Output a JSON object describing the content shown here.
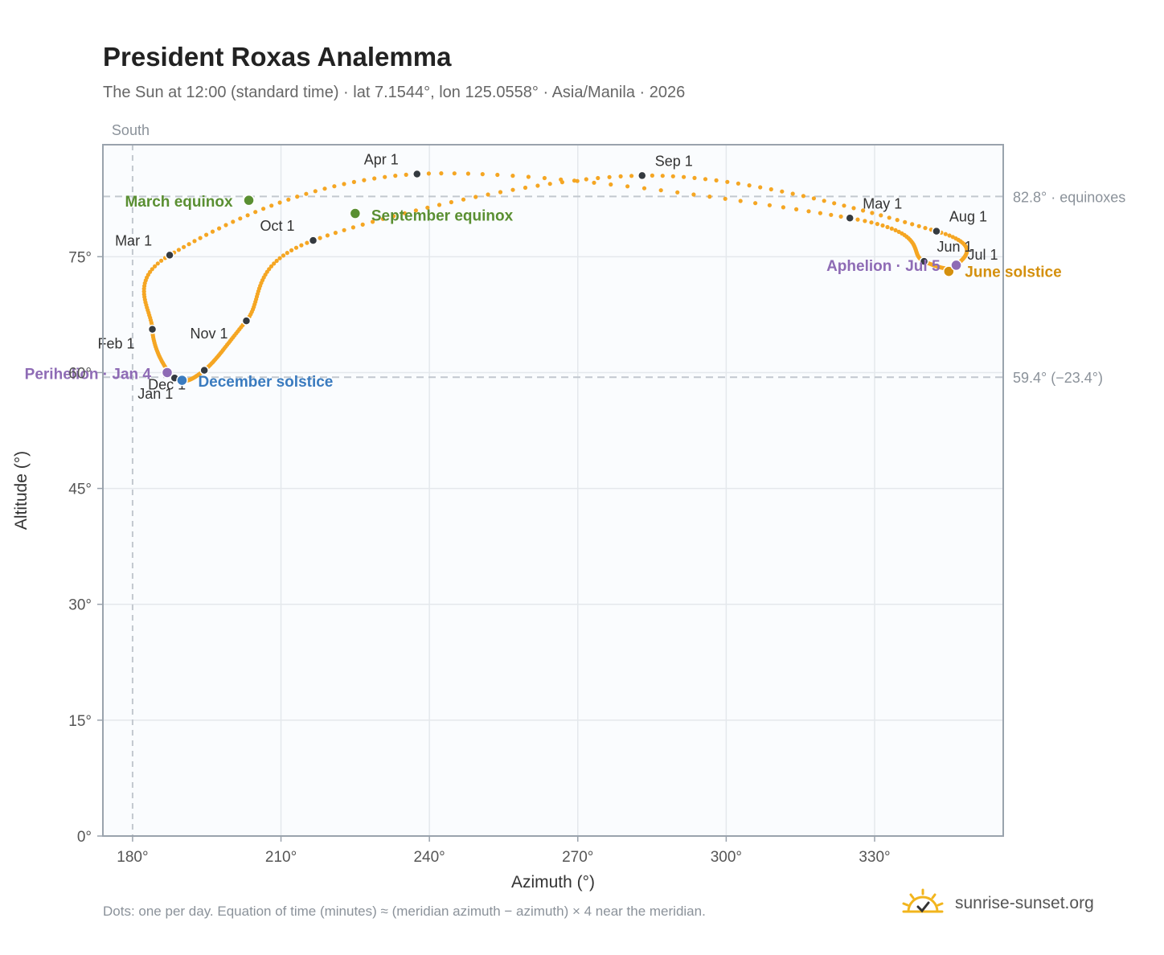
{
  "title": "President Roxas Analemma",
  "subtitle": "The Sun at 12:00 (standard time) · lat 7.1544°, lon 125.0558° · Asia/Manila · 2026",
  "footnote": "Dots: one per day. Equation of time (minutes) ≈ (meridian azimuth − azimuth) × 4 near the meridian.",
  "brand": {
    "name": "sunrise-sunset.org",
    "logo_icon": "sun-check-logo-icon"
  },
  "colors": {
    "path": "#f5a623",
    "month_marker": "#343a40",
    "equinox": "#5a8f32",
    "solstice_june": "#d4900e",
    "solstice_december": "#3a7bbf",
    "apsis": "#8e6bb5",
    "plot_bg": "#fafcfe",
    "grid": "#e4e8ec",
    "axis": "#9aa3ad",
    "reference_line": "#c2c8cf"
  },
  "chart_data": {
    "type": "scatter",
    "xlabel": "Azimuth (°)",
    "ylabel": "Altitude (°)",
    "xlim": [
      174,
      356
    ],
    "ylim": [
      0,
      89.5
    ],
    "x_ticks": [
      180,
      210,
      240,
      270,
      300,
      330
    ],
    "x_tick_labels": [
      "180°",
      "210°",
      "240°",
      "270°",
      "300°",
      "330°"
    ],
    "y_ticks": [
      0,
      15,
      30,
      45,
      60,
      75
    ],
    "y_tick_labels": [
      "0°",
      "15°",
      "30°",
      "45°",
      "60°",
      "75°"
    ],
    "grid": true,
    "meridian": {
      "x": 180,
      "label": "South"
    },
    "reference_lines": [
      {
        "y": 82.8,
        "label": "82.8° · equinoxes"
      },
      {
        "y": 59.4,
        "label": "59.4° (−23.4°)"
      }
    ],
    "month_markers": [
      {
        "label": "Jan 1",
        "x": 188.5,
        "y": 59.3
      },
      {
        "label": "Feb 1",
        "x": 184.0,
        "y": 65.6
      },
      {
        "label": "Mar 1",
        "x": 187.5,
        "y": 75.2
      },
      {
        "label": "Apr 1",
        "x": 237.5,
        "y": 85.7
      },
      {
        "label": "May 1",
        "x": 325.0,
        "y": 80.0
      },
      {
        "label": "Jun 1",
        "x": 340.0,
        "y": 74.4
      },
      {
        "label": "Jul 1",
        "x": 346.5,
        "y": 73.8
      },
      {
        "label": "Aug 1",
        "x": 342.5,
        "y": 78.3
      },
      {
        "label": "Sep 1",
        "x": 283.0,
        "y": 85.5
      },
      {
        "label": "Oct 1",
        "x": 216.5,
        "y": 77.1
      },
      {
        "label": "Nov 1",
        "x": 203.0,
        "y": 66.7
      },
      {
        "label": "Dec 1",
        "x": 194.5,
        "y": 60.3
      }
    ],
    "events": [
      {
        "label": "March equinox",
        "x": 203.5,
        "y": 82.3,
        "kind": "equinox"
      },
      {
        "label": "September equinox",
        "x": 225.0,
        "y": 80.6,
        "kind": "equinox"
      },
      {
        "label": "June solstice",
        "x": 345.0,
        "y": 73.1,
        "kind": "solstice_june"
      },
      {
        "label": "December solstice",
        "x": 190.0,
        "y": 59.0,
        "kind": "solstice_december"
      },
      {
        "label": "Perihelion · Jan 4",
        "x": 187.0,
        "y": 60.0,
        "kind": "apsis"
      },
      {
        "label": "Aphelion · Jul 5",
        "x": 346.5,
        "y": 73.9,
        "kind": "apsis"
      }
    ]
  }
}
